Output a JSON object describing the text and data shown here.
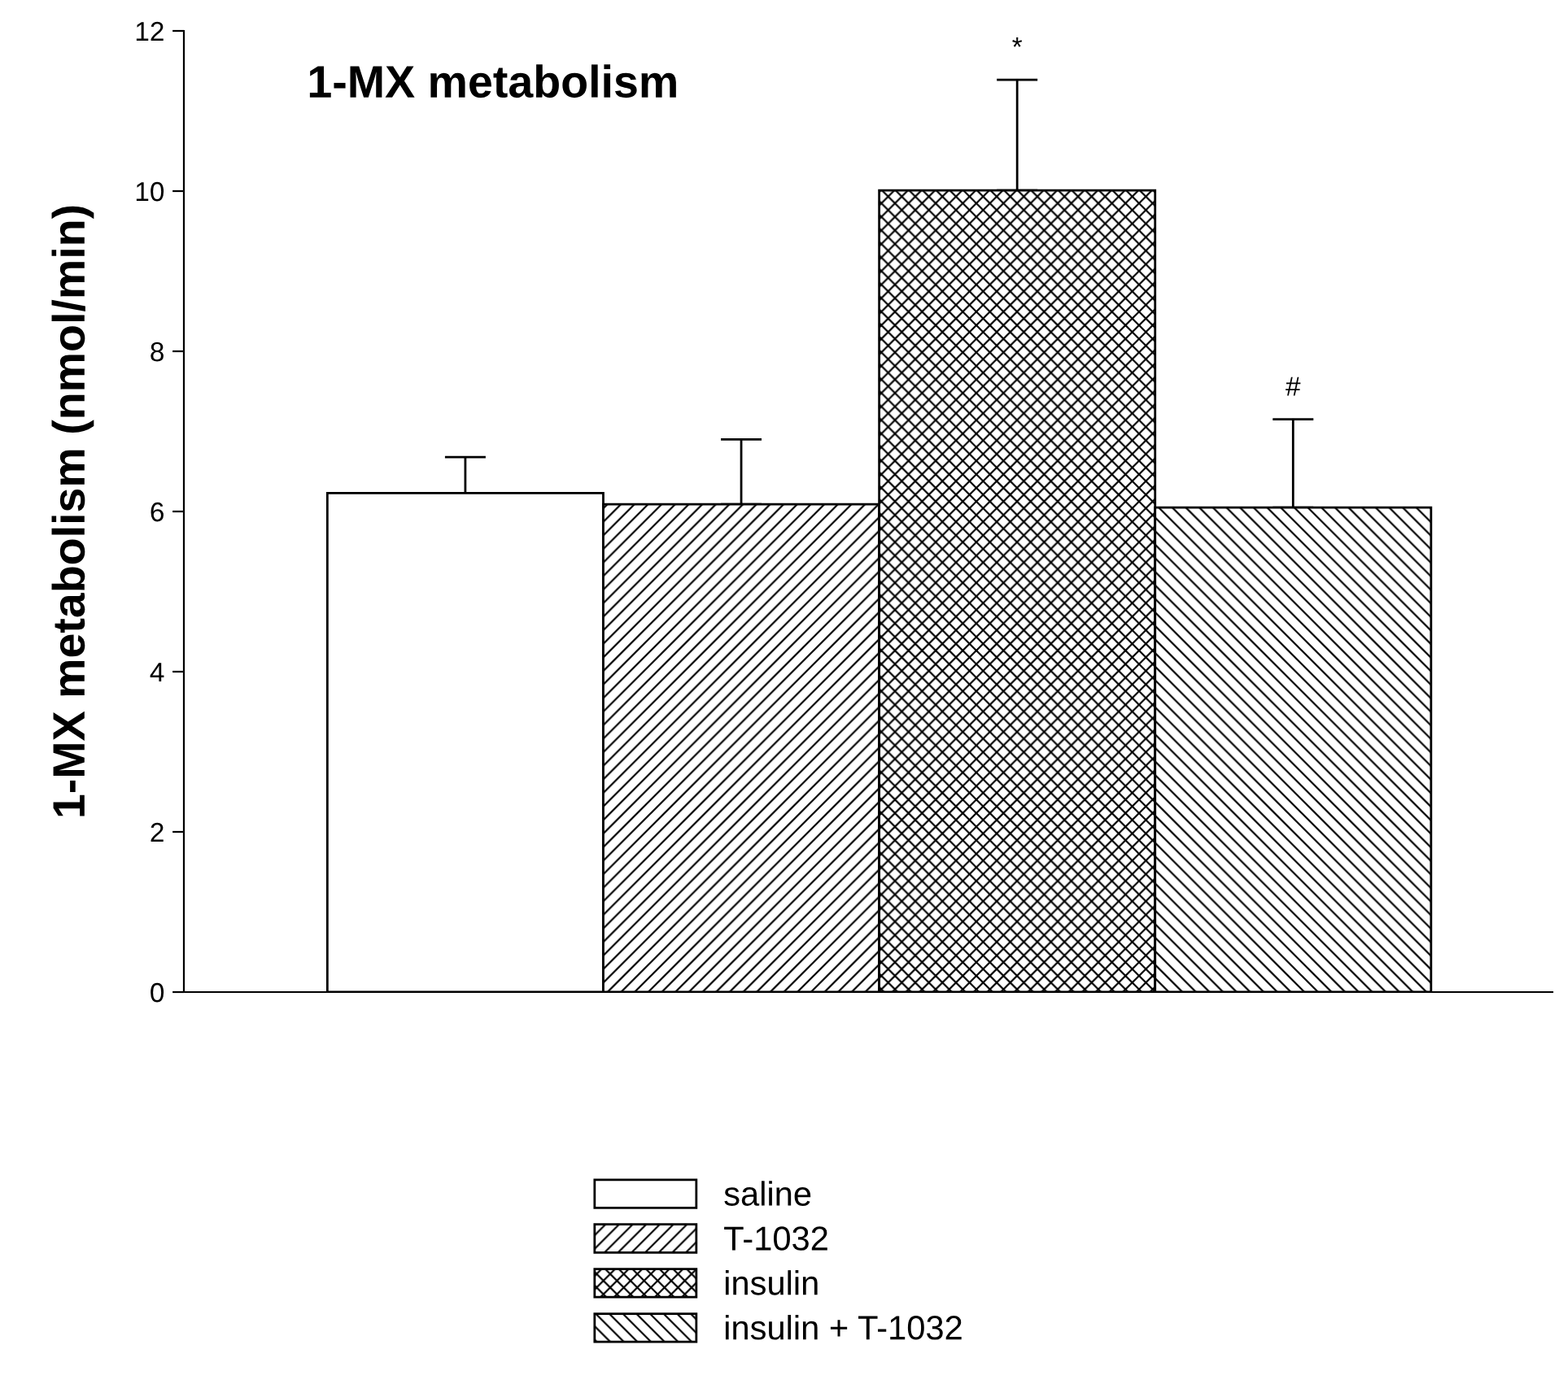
{
  "chart_data": {
    "type": "bar",
    "title": "1-MX metabolism",
    "ylabel": "1-MX metabolism (nmol/min)",
    "categories": [
      null,
      null,
      null,
      null
    ],
    "series": [
      {
        "name": "saline",
        "color": "#ffffff",
        "values": [
          6.23,
          null,
          null,
          null
        ],
        "errors": [
          [
            6.23,
            6.68
          ],
          null,
          null,
          null
        ]
      },
      {
        "name": "T-1032",
        "color": "#000000",
        "values": [
          null,
          6.09,
          null,
          null
        ],
        "errors": [
          null,
          [
            6.09,
            6.9
          ],
          null,
          null
        ]
      },
      {
        "name": "insulin",
        "color": "#000000",
        "values": [
          null,
          null,
          10.01,
          null
        ],
        "errors": [
          null,
          null,
          [
            10.01,
            11.39
          ],
          null
        ]
      },
      {
        "name": "insulin + T-1032",
        "color": "#000000",
        "values": [
          null,
          null,
          null,
          6.05
        ],
        "errors": [
          null,
          null,
          null,
          [
            6.05,
            7.15
          ]
        ]
      }
    ],
    "annotations": [
      {
        "text": "*",
        "y": 11.39
      },
      {
        "text": "#",
        "y": 7.15
      }
    ],
    "ylim": [
      0,
      12
    ],
    "yticks": [
      0,
      2,
      4,
      6,
      8,
      10,
      12
    ],
    "grid": false,
    "legend": "bottom"
  }
}
